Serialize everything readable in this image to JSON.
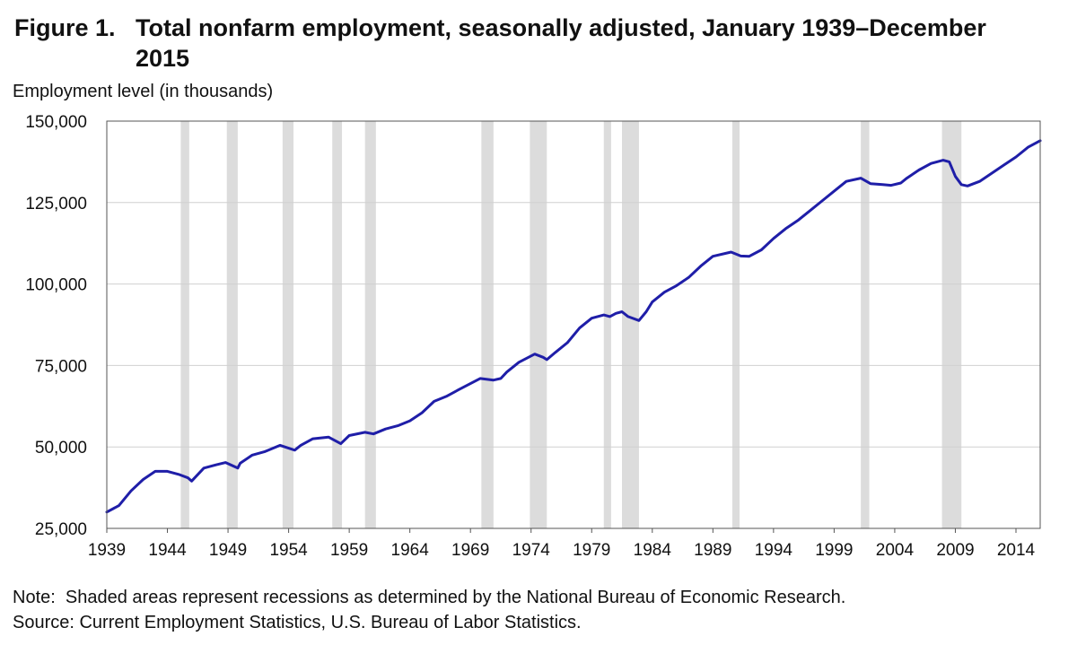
{
  "figure": {
    "number": "Figure 1.",
    "title": "Total nonfarm employment, seasonally adjusted, January 1939–December 2015"
  },
  "note": "Note:  Shaded areas represent recessions as determined by the National Bureau of Economic Research.",
  "source": "Source: Current Employment Statistics, U.S. Bureau of Labor Statistics.",
  "colors": {
    "line": "#1f1ea8",
    "recession": "#dcdcdc",
    "grid": "#d0d0d0",
    "frame": "#555555"
  },
  "chart_data": {
    "type": "line",
    "title": "Total nonfarm employment, seasonally adjusted, January 1939–December 2015",
    "xlabel": "",
    "ylabel": "Employment level (in thousands)",
    "xlim": [
      1939.0,
      2016.0
    ],
    "ylim": [
      25000,
      150000
    ],
    "grid": true,
    "y_ticks": [
      25000,
      50000,
      75000,
      100000,
      125000,
      150000
    ],
    "y_tick_labels": [
      "25,000",
      "50,000",
      "75,000",
      "100,000",
      "125,000",
      "150,000"
    ],
    "x_ticks": [
      1939,
      1944,
      1949,
      1954,
      1959,
      1964,
      1969,
      1974,
      1979,
      1984,
      1989,
      1994,
      1999,
      2004,
      2009,
      2014
    ],
    "x_tick_labels": [
      "1939",
      "1944",
      "1949",
      "1954",
      "1959",
      "1964",
      "1969",
      "1974",
      "1979",
      "1984",
      "1989",
      "1994",
      "1999",
      "2004",
      "2009",
      "2014"
    ],
    "recessions": [
      [
        1945.1,
        1945.8
      ],
      [
        1948.9,
        1949.8
      ],
      [
        1953.5,
        1954.4
      ],
      [
        1957.6,
        1958.4
      ],
      [
        1960.3,
        1961.2
      ],
      [
        1969.9,
        1970.9
      ],
      [
        1973.9,
        1975.3
      ],
      [
        1980.0,
        1980.6
      ],
      [
        1981.5,
        1982.9
      ],
      [
        1990.6,
        1991.2
      ],
      [
        2001.2,
        2001.9
      ],
      [
        2007.9,
        2009.5
      ]
    ],
    "series": [
      {
        "x": [
          1939.0,
          1940.0,
          1941.0,
          1942.0,
          1943.0,
          1944.0,
          1945.0,
          1945.7,
          1946.0,
          1947.0,
          1948.0,
          1948.8,
          1949.8,
          1950.0,
          1951.0,
          1952.0,
          1953.3,
          1954.5,
          1955.0,
          1956.0,
          1957.3,
          1958.3,
          1959.0,
          1960.3,
          1961.0,
          1962.0,
          1963.0,
          1964.0,
          1965.0,
          1966.0,
          1967.0,
          1968.0,
          1969.8,
          1970.9,
          1971.5,
          1972.0,
          1973.0,
          1974.3,
          1975.0,
          1975.3,
          1976.0,
          1977.0,
          1978.0,
          1979.0,
          1980.0,
          1980.5,
          1981.0,
          1981.5,
          1982.0,
          1982.9,
          1983.5,
          1984.0,
          1985.0,
          1986.0,
          1987.0,
          1988.0,
          1989.0,
          1990.5,
          1991.3,
          1992.0,
          1993.0,
          1994.0,
          1995.0,
          1996.0,
          1997.0,
          1998.0,
          1999.0,
          2000.0,
          2001.2,
          2002.0,
          2003.0,
          2003.7,
          2004.5,
          2005.0,
          2006.0,
          2007.0,
          2008.0,
          2008.5,
          2009.0,
          2009.5,
          2010.0,
          2011.0,
          2012.0,
          2013.0,
          2014.0,
          2015.0,
          2016.0
        ],
        "values": [
          30000,
          32000,
          36500,
          40000,
          42500,
          42500,
          41500,
          40500,
          39500,
          43500,
          44500,
          45200,
          43500,
          45000,
          47500,
          48500,
          50500,
          49000,
          50500,
          52500,
          53000,
          51000,
          53500,
          54500,
          54000,
          55500,
          56500,
          58000,
          60500,
          64000,
          65500,
          67500,
          71000,
          70500,
          71000,
          73000,
          76000,
          78500,
          77500,
          76800,
          79000,
          82000,
          86500,
          89500,
          90500,
          90000,
          91000,
          91500,
          90000,
          88800,
          91500,
          94500,
          97500,
          99500,
          102000,
          105500,
          108500,
          109800,
          108600,
          108500,
          110500,
          114000,
          117000,
          119500,
          122500,
          125500,
          128500,
          131500,
          132500,
          130800,
          130500,
          130300,
          131000,
          132500,
          135000,
          137000,
          138000,
          137500,
          133000,
          130500,
          130100,
          131500,
          134000,
          136500,
          139000,
          142000,
          144000
        ]
      }
    ]
  }
}
